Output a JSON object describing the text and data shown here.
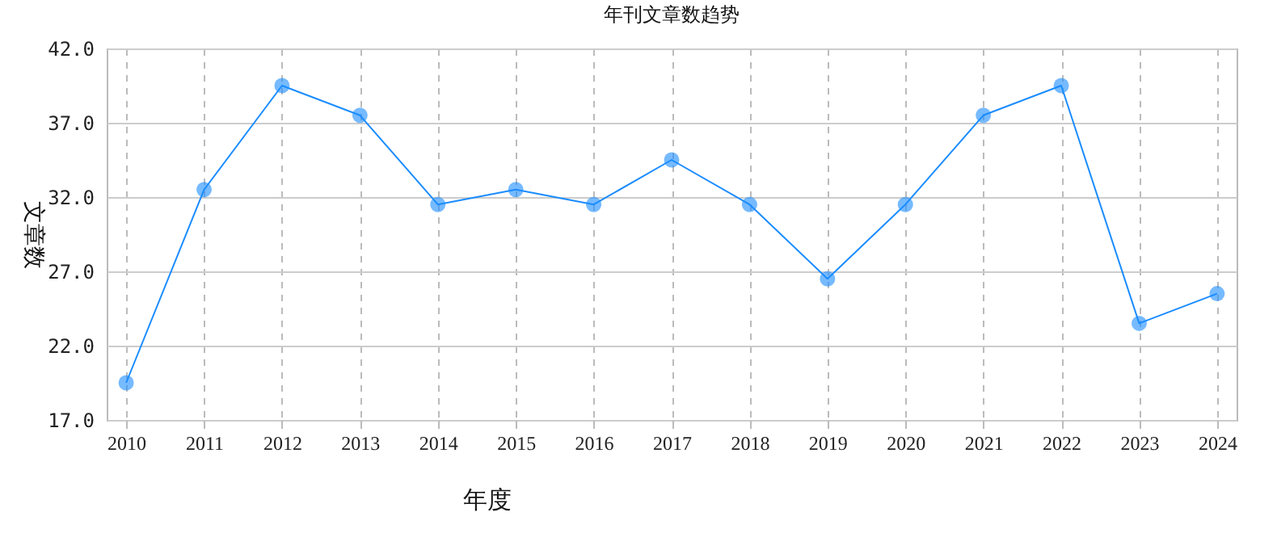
{
  "chart_data": {
    "type": "line",
    "title": "年刊文章数趋势",
    "xlabel": "年度",
    "ylabel": "文章数",
    "categories": [
      "2010",
      "2011",
      "2012",
      "2013",
      "2014",
      "2015",
      "2016",
      "2017",
      "2018",
      "2019",
      "2020",
      "2021",
      "2022",
      "2023",
      "2024"
    ],
    "series": [
      {
        "color": "#1a8cff",
        "values": [
          19.5,
          32.5,
          39.5,
          37.5,
          31.5,
          32.5,
          31.5,
          34.5,
          31.5,
          26.5,
          31.5,
          37.5,
          39.5,
          23.5,
          25.5
        ]
      }
    ],
    "ylim": [
      17,
      42
    ],
    "yticks": [
      {
        "value": 17,
        "label": "17.0"
      },
      {
        "value": 22,
        "label": "22.0"
      },
      {
        "value": 27,
        "label": "27.0"
      },
      {
        "value": 32,
        "label": "32.0"
      },
      {
        "value": 37,
        "label": "37.0"
      },
      {
        "value": 42,
        "label": "42.0"
      }
    ],
    "grid": true,
    "marker": "circle",
    "line_style": "solid"
  }
}
